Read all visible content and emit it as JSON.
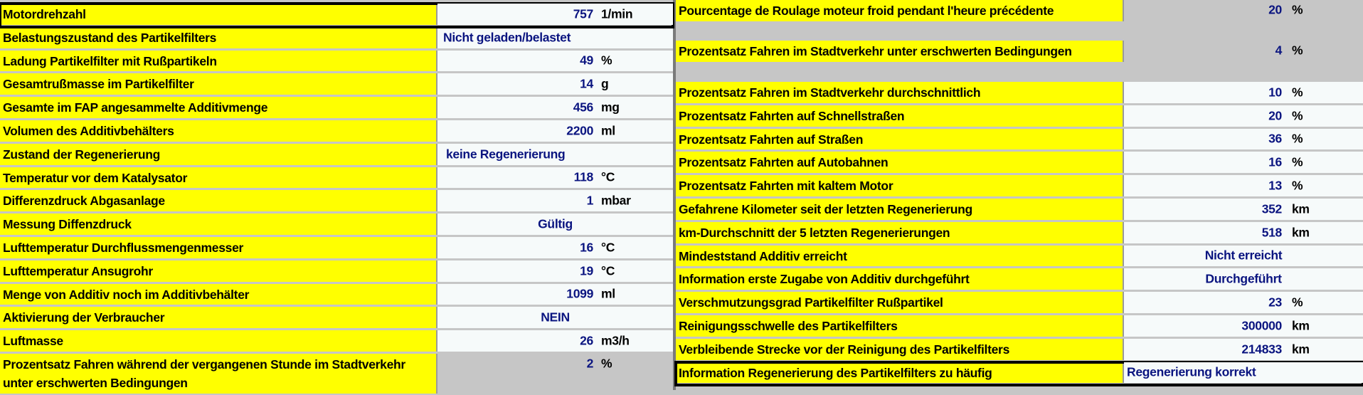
{
  "left": [
    {
      "label": "Motordrehzahl",
      "value": "757",
      "unit": "1/min"
    },
    {
      "label": "Belastungszustand des Partikelfilters",
      "text": "Nicht geladen/belastet"
    },
    {
      "label": "Ladung Partikelfilter mit Rußpartikeln",
      "value": "49",
      "unit": "%"
    },
    {
      "label": "Gesamtrußmasse im Partikelfilter",
      "value": "14",
      "unit": "g"
    },
    {
      "label": "Gesamte im FAP angesammelte Additivmenge",
      "value": "456",
      "unit": "mg"
    },
    {
      "label": "Volumen des Additivbehälters",
      "value": "2200",
      "unit": "ml"
    },
    {
      "label": "Zustand der Regenerierung",
      "text": "keine Regenerierung"
    },
    {
      "label": "Temperatur vor dem Katalysator",
      "value": "118",
      "unit": "°C"
    },
    {
      "label": "Differenzdruck Abgasanlage",
      "value": "1",
      "unit": "mbar"
    },
    {
      "label": "Messung Diffenzdruck",
      "text": "Gültig"
    },
    {
      "label": "Lufttemperatur Durchflussmengenmesser",
      "value": "16",
      "unit": "°C"
    },
    {
      "label": "Lufttemperatur Ansugrohr",
      "value": "19",
      "unit": "°C"
    },
    {
      "label": "Menge von Additiv noch im Additivbehälter",
      "value": "1099",
      "unit": "ml"
    },
    {
      "label": "Aktivierung der Verbraucher",
      "text": "NEIN"
    },
    {
      "label": "Luftmasse",
      "value": "26",
      "unit": "m3/h"
    },
    {
      "label": "Prozentsatz Fahren während der vergangenen Stunde im Stadtverkehr unter erschwerten Bedingungen",
      "value": "2",
      "unit": "%"
    }
  ],
  "right": [
    {
      "label": "Pourcentage de Roulage moteur froid pendant l'heure précédente",
      "value": "20",
      "unit": "%"
    },
    {
      "label": "Prozentsatz Fahren im Stadtverkehr unter erschwerten Bedingungen",
      "value": "4",
      "unit": "%"
    },
    {
      "label": "Prozentsatz Fahren im Stadtverkehr durchschnittlich",
      "value": "10",
      "unit": "%"
    },
    {
      "label": "Prozentsatz Fahrten auf Schnellstraßen",
      "value": "20",
      "unit": "%"
    },
    {
      "label": "Prozentsatz Fahrten auf Straßen",
      "value": "36",
      "unit": "%"
    },
    {
      "label": "Prozentsatz Fahrten auf Autobahnen",
      "value": "16",
      "unit": "%"
    },
    {
      "label": "Prozentsatz Fahrten mit kaltem Motor",
      "value": "13",
      "unit": "%"
    },
    {
      "label": "Gefahrene Kilometer seit der letzten Regenerierung",
      "value": "352",
      "unit": "km"
    },
    {
      "label": "km-Durchschnitt der 5 letzten Regenerierungen",
      "value": "518",
      "unit": "km"
    },
    {
      "label": "Mindeststand Additiv erreicht",
      "text": "Nicht erreicht"
    },
    {
      "label": "Information erste Zugabe von Additiv durchgeführt",
      "text": "Durchgeführt"
    },
    {
      "label": "Verschmutzungsgrad Partikelfilter Rußpartikel",
      "value": "23",
      "unit": "%"
    },
    {
      "label": "Reinigungsschwelle des Partikelfilters",
      "value": "300000",
      "unit": "km"
    },
    {
      "label": "Verbleibende Strecke vor der Reinigung des Partikelfilters",
      "value": "214833",
      "unit": "km"
    },
    {
      "label": "Information Regenerierung des Partikelfilters zu häufig",
      "text": "Regenerierung korrekt"
    }
  ],
  "colors": {
    "label_bg": "#ffff00",
    "value_text": "#0a1480",
    "background": "#c6c6c6"
  }
}
